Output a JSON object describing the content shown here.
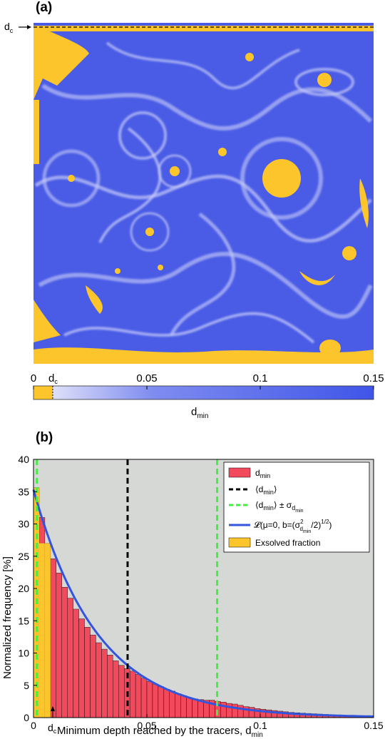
{
  "panel_a": {
    "label": "(a)",
    "dc_marker": "d",
    "dc_marker_sub": "c",
    "colorbar": {
      "ticks": [
        "0",
        "0.05",
        "0.1",
        "0.15"
      ],
      "dc_label": "d",
      "dc_label_sub": "c",
      "xlabel": "d",
      "xlabel_sub": "min",
      "colors": {
        "exsolved": "#fbc52b",
        "low": "#f0f0fa",
        "high": "#3f55e8"
      }
    }
  },
  "panel_b": {
    "label": "(b)",
    "dc_label": "d",
    "dc_label_sub": "c",
    "legend": {
      "bars": "d",
      "bars_sub": "min",
      "mean": "⟨d",
      "mean_sub": "min",
      "mean_close": "⟩",
      "std": "⟨d",
      "std_sub": "min",
      "std_close": "⟩ ± σ",
      "std_sub2": "d",
      "std_sub3": "min",
      "fit": "𝓛(μ=0, b=(σ",
      "fit_sup": "2",
      "fit_sub": "d",
      "fit_sub2": "min",
      "fit_close": "/2)",
      "fit_pow": "1/2",
      "fit_end": ")",
      "exsolved": "Exsolved fraction"
    }
  },
  "chart_data": {
    "type": "bar",
    "xlabel": "Minimum depth reached by the tracers, d",
    "xlabel_sub": "min",
    "ylabel": "Normalized frequency [%]",
    "xlim": [
      0,
      0.15
    ],
    "ylim": [
      0,
      40
    ],
    "xticks": [
      "0",
      "0.05",
      "0.1",
      "0.15"
    ],
    "yticks": [
      "0",
      "5",
      "10",
      "15",
      "20",
      "25",
      "30",
      "35",
      "40"
    ],
    "bin_width": 0.0025,
    "dc": 0.0085,
    "mean": 0.0415,
    "std_upper": 0.081,
    "std_lower": 0.0015,
    "fit_b": 0.0282,
    "fit_peak": 35.3,
    "background": "#d6d8d6",
    "colors": {
      "bars": "#f2495c",
      "mean": "#000000",
      "std": "#44ee44",
      "fit": "#3355dd",
      "exsolved": "#fbc52b"
    },
    "bins_x": [
      0.00125,
      0.00375,
      0.00625,
      0.00875,
      0.01125,
      0.01375,
      0.01625,
      0.01875,
      0.02125,
      0.02375,
      0.02625,
      0.02875,
      0.03125,
      0.03375,
      0.03625,
      0.03875,
      0.04125,
      0.04375,
      0.04625,
      0.04875,
      0.05125,
      0.05375,
      0.05625,
      0.05875,
      0.06125,
      0.06375,
      0.06625,
      0.06875,
      0.07125,
      0.07375,
      0.07625,
      0.07875,
      0.08125,
      0.08375,
      0.08625,
      0.08875,
      0.09125,
      0.09375,
      0.09625,
      0.09875,
      0.10125,
      0.10375,
      0.10625,
      0.10875,
      0.11125,
      0.11375,
      0.11625,
      0.11875,
      0.12125,
      0.12375,
      0.12625,
      0.12875,
      0.13125,
      0.13375,
      0.13625,
      0.13875,
      0.14125,
      0.14375,
      0.14625,
      0.14875
    ],
    "bins_y": [
      35.6,
      31.0,
      27.0,
      24.6,
      22.4,
      20.2,
      18.5,
      16.8,
      15.3,
      14.0,
      12.8,
      11.6,
      10.6,
      9.7,
      8.8,
      8.1,
      7.6,
      7.2,
      6.7,
      6.1,
      5.6,
      5.2,
      4.8,
      4.4,
      4.1,
      3.7,
      3.4,
      3.1,
      2.9,
      2.8,
      2.7,
      2.7,
      2.5,
      2.4,
      2.2,
      2.1,
      1.9,
      1.7,
      1.6,
      1.4,
      1.3,
      1.2,
      1.1,
      1.0,
      0.9,
      0.8,
      0.75,
      0.7,
      0.65,
      0.6,
      0.55,
      0.5,
      0.45,
      0.4,
      0.38,
      0.35,
      0.32,
      0.3,
      0.28,
      0.25
    ],
    "exsolved_y": [
      35.6,
      27.0,
      27.0,
      0,
      0,
      0
    ]
  }
}
